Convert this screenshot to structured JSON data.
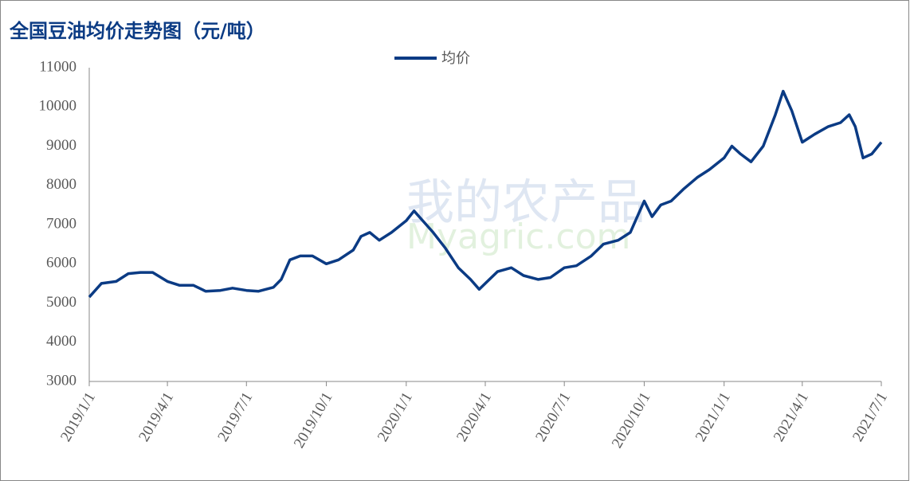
{
  "chart_data": {
    "type": "line",
    "title": "全国豆油均价走势图（元/吨）",
    "watermark": [
      "我的农产品",
      "Myagric.com"
    ],
    "x": [
      "2019/1/1",
      "2019/1/15",
      "2019/2/1",
      "2019/2/15",
      "2019/3/1",
      "2019/3/15",
      "2019/4/1",
      "2019/4/15",
      "2019/5/1",
      "2019/5/15",
      "2019/6/1",
      "2019/6/15",
      "2019/7/1",
      "2019/7/15",
      "2019/8/1",
      "2019/8/10",
      "2019/8/20",
      "2019/9/1",
      "2019/9/15",
      "2019/10/1",
      "2019/10/15",
      "2019/11/1",
      "2019/11/10",
      "2019/11/20",
      "2019/12/1",
      "2019/12/15",
      "2020/1/1",
      "2020/1/10",
      "2020/1/20",
      "2020/2/1",
      "2020/2/15",
      "2020/3/1",
      "2020/3/15",
      "2020/3/25",
      "2020/4/1",
      "2020/4/15",
      "2020/5/1",
      "2020/5/15",
      "2020/6/1",
      "2020/6/15",
      "2020/7/1",
      "2020/7/15",
      "2020/8/1",
      "2020/8/15",
      "2020/9/1",
      "2020/9/15",
      "2020/9/25",
      "2020/10/1",
      "2020/10/10",
      "2020/10/20",
      "2020/11/1",
      "2020/11/15",
      "2020/12/1",
      "2020/12/15",
      "2021/1/1",
      "2021/1/10",
      "2021/1/20",
      "2021/2/1",
      "2021/2/15",
      "2021/3/1",
      "2021/3/10",
      "2021/3/20",
      "2021/4/1",
      "2021/4/15",
      "2021/5/1",
      "2021/5/15",
      "2021/5/25",
      "2021/6/1",
      "2021/6/10",
      "2021/6/20",
      "2021/7/1"
    ],
    "series": [
      {
        "name": "均价",
        "color": "#0b3b84",
        "values": [
          5150,
          5500,
          5550,
          5750,
          5780,
          5780,
          5550,
          5450,
          5450,
          5300,
          5320,
          5380,
          5320,
          5300,
          5400,
          5600,
          6100,
          6200,
          6200,
          6000,
          6100,
          6350,
          6700,
          6800,
          6600,
          6800,
          7100,
          7350,
          7100,
          6800,
          6400,
          5900,
          5600,
          5350,
          5500,
          5800,
          5900,
          5700,
          5600,
          5650,
          5900,
          5950,
          6200,
          6500,
          6600,
          6800,
          7300,
          7600,
          7200,
          7500,
          7600,
          7900,
          8200,
          8400,
          8700,
          9000,
          8800,
          8600,
          9000,
          9800,
          10400,
          9900,
          9100,
          9300,
          9500,
          9600,
          9800,
          9500,
          8700,
          8800,
          9100
        ]
      }
    ],
    "xticks": [
      "2019/1/1",
      "2019/4/1",
      "2019/7/1",
      "2019/10/1",
      "2020/1/1",
      "2020/4/1",
      "2020/7/1",
      "2020/10/1",
      "2021/1/1",
      "2021/4/1",
      "2021/7/1"
    ],
    "ylim": [
      3000,
      11000
    ],
    "yticks": [
      3000,
      4000,
      5000,
      6000,
      7000,
      8000,
      9000,
      10000,
      11000
    ],
    "legend": "top"
  }
}
